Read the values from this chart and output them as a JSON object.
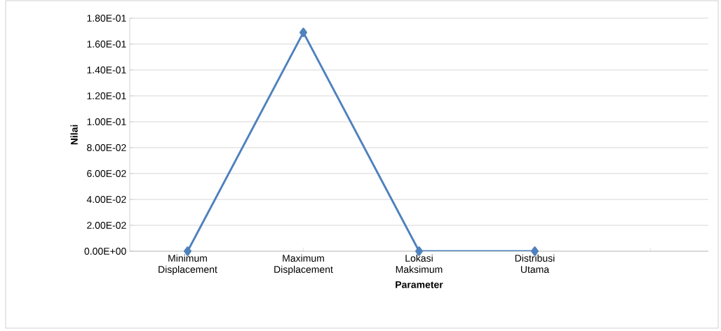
{
  "chart_data": {
    "type": "line",
    "xlabel": "Parameter",
    "ylabel": "Nilai",
    "categories": [
      "Minimum Displacement",
      "Maximum Displacement",
      "Lokasi Maksimum",
      "Distribusi Utama",
      null
    ],
    "series": [
      {
        "color": "#4f81bd",
        "values": [
          0,
          0.169,
          0,
          0,
          null
        ]
      }
    ],
    "ylim": [
      0,
      0.18
    ],
    "yticks": [
      {
        "value": 0,
        "label": "0.00E+00"
      },
      {
        "value": 0.02,
        "label": "2.00E-02"
      },
      {
        "value": 0.04,
        "label": "4.00E-02"
      },
      {
        "value": 0.06,
        "label": "6.00E-02"
      },
      {
        "value": 0.08,
        "label": "8.00E-02"
      },
      {
        "value": 0.1,
        "label": "1.00E-01"
      },
      {
        "value": 0.12,
        "label": "1.20E-01"
      },
      {
        "value": 0.14,
        "label": "1.40E-01"
      },
      {
        "value": 0.16,
        "label": "1.60E-01"
      },
      {
        "value": 0.18,
        "label": "1.80E-01"
      }
    ],
    "grid": "y",
    "marker": "diamond",
    "line_style": "solid"
  }
}
